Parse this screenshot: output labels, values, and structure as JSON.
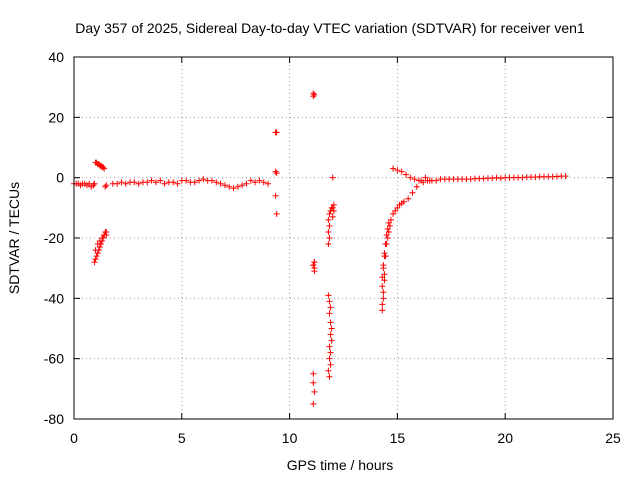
{
  "chart_data": {
    "type": "scatter",
    "title": "Day 357 of 2025, Sidereal Day-to-day VTEC variation (SDTVAR) for receiver ven1",
    "xlabel": "GPS time / hours",
    "ylabel": "SDTVAR / TECUs",
    "xlim": [
      0,
      25
    ],
    "ylim": [
      -80,
      40
    ],
    "xticks": [
      "0",
      "5",
      "10",
      "15",
      "20",
      "25"
    ],
    "yticks": [
      "-80",
      "-60",
      "-40",
      "-20",
      "0",
      "20",
      "40"
    ],
    "grid": true,
    "marker": "+",
    "color": "#ff0000",
    "series": [
      {
        "name": "ven1",
        "x": [
          0.0,
          0.1,
          0.2,
          0.3,
          0.4,
          0.5,
          0.6,
          0.7,
          0.8,
          0.9,
          0.95,
          1.0,
          1.05,
          1.1,
          1.15,
          1.2,
          1.25,
          1.3,
          1.35,
          1.4,
          1.45,
          1.5,
          1.0,
          1.05,
          1.1,
          1.15,
          1.2,
          1.25,
          1.3,
          1.35,
          1.4,
          1.45,
          1.5,
          0.95,
          1.0,
          1.1,
          1.2,
          1.3,
          1.4,
          1.5,
          1.8,
          2.0,
          2.2,
          2.4,
          2.6,
          2.8,
          3.0,
          3.2,
          3.4,
          3.6,
          3.8,
          4.0,
          4.2,
          4.4,
          4.6,
          4.8,
          5.0,
          5.2,
          5.4,
          5.6,
          5.8,
          6.0,
          6.2,
          6.4,
          6.6,
          6.8,
          7.0,
          7.2,
          7.4,
          7.6,
          7.8,
          8.0,
          8.2,
          8.4,
          8.6,
          8.8,
          9.0,
          9.35,
          9.4,
          9.35,
          9.4,
          9.35,
          9.4,
          11.1,
          11.15,
          11.1,
          11.15,
          11.1,
          11.15,
          11.1,
          11.1,
          11.15,
          11.1,
          11.15,
          11.1,
          11.15,
          11.8,
          11.85,
          11.8,
          11.85,
          11.8,
          11.85,
          11.9,
          11.95,
          12.0,
          12.0,
          12.05,
          12.05,
          12.0,
          11.8,
          11.85,
          11.9,
          11.85,
          11.9,
          11.95,
          11.9,
          11.95,
          11.85,
          11.9,
          11.85,
          11.9,
          11.8,
          11.85,
          14.3,
          14.35,
          14.4,
          14.45,
          14.5,
          14.55,
          14.6,
          14.65,
          14.7,
          14.8,
          14.9,
          15.0,
          15.1,
          15.2,
          15.3,
          15.5,
          15.7,
          15.9,
          16.1,
          16.3,
          16.5,
          14.3,
          14.35,
          14.4,
          14.45,
          14.5,
          14.55,
          14.6,
          14.3,
          14.35,
          14.4,
          14.3,
          14.35,
          14.4,
          14.8,
          15.0,
          15.2,
          15.4,
          15.6,
          15.8,
          16.0,
          16.2,
          16.4,
          16.6,
          16.8,
          17.0,
          17.2,
          17.4,
          17.6,
          17.8,
          18.0,
          18.2,
          18.4,
          18.6,
          18.8,
          19.0,
          19.2,
          19.4,
          19.6,
          19.8,
          20.0,
          20.2,
          20.4,
          20.6,
          20.8,
          21.0,
          21.2,
          21.4,
          21.6,
          21.8,
          22.0,
          22.2,
          22.4,
          22.6,
          22.8
        ],
        "y": [
          -2,
          -2,
          -2,
          -2.5,
          -2,
          -2,
          -2.5,
          -2,
          -3,
          -2.5,
          -2,
          5,
          5,
          4.5,
          4.5,
          4,
          4,
          3.5,
          3.5,
          3,
          -3,
          -2.5,
          -27,
          -26,
          -25,
          -24,
          -23,
          -22,
          -21,
          -20,
          -19,
          -18,
          -18,
          -28,
          -24,
          -22,
          -21,
          -20,
          -19,
          -19,
          -2,
          -2,
          -1.5,
          -2,
          -1.5,
          -1.5,
          -2,
          -1.5,
          -1.5,
          -1,
          -1.5,
          -1,
          -2,
          -1.5,
          -1.5,
          -2,
          -1,
          -1,
          -1.5,
          -1.5,
          -1,
          -0.5,
          -1,
          -1,
          -1.5,
          -2,
          -2.5,
          -3,
          -3.5,
          -3,
          -2.5,
          -2,
          -1,
          -1.5,
          -1,
          -1.5,
          -2,
          15,
          15,
          2,
          1.5,
          -6,
          -12,
          28,
          27.5,
          27,
          -28,
          -29,
          -30,
          -65,
          -68,
          -71,
          -75,
          -31,
          -29,
          -28,
          -22,
          -20,
          -18,
          -16,
          -14,
          -12,
          -11,
          -10,
          -10,
          0,
          -9,
          -11,
          -13,
          -39,
          -41,
          -43,
          -45,
          -48,
          -50,
          -52,
          -54,
          -56,
          -58,
          -60,
          -62,
          -64,
          -66,
          -44,
          -40,
          -32,
          -26,
          -22,
          -20,
          -18,
          -16,
          -14,
          -12,
          -11,
          -10,
          -9,
          -8.5,
          -8,
          -7,
          -5,
          -3,
          -1,
          0,
          -1,
          -36,
          -30,
          -25,
          -22,
          -19,
          -17,
          -15,
          -42,
          -38,
          -34,
          -33,
          -29,
          -26,
          3,
          2.5,
          2,
          1,
          0,
          -0.5,
          -1,
          -1.5,
          -1,
          -1,
          -1,
          -0.5,
          -0.5,
          -0.5,
          -0.5,
          -0.5,
          -0.5,
          -0.5,
          -0.5,
          -0.3,
          -0.3,
          -0.3,
          -0.2,
          -0.2,
          0,
          -0.2,
          0,
          0,
          0,
          0,
          0,
          0.2,
          0.2,
          0.2,
          0.3,
          0.3,
          0.3,
          0.3,
          0.4,
          0.5,
          0.5
        ]
      }
    ]
  }
}
